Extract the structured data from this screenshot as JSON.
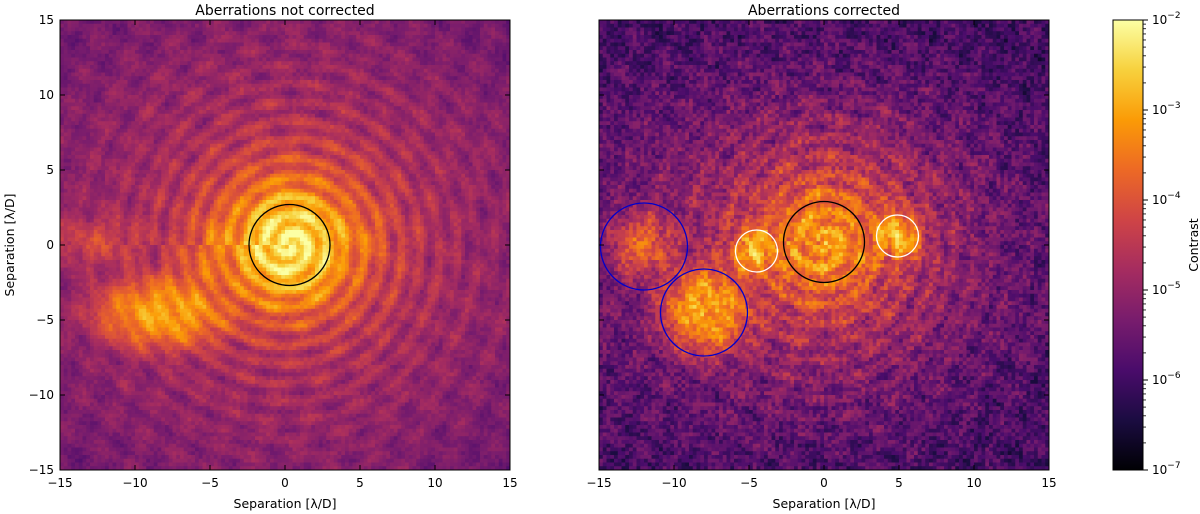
{
  "figure": {
    "colorbar": {
      "label": "Contrast",
      "tick_labels": [
        "10^-2",
        "10^-3",
        "10^-4",
        "10^-5",
        "10^-6",
        "10^-7"
      ],
      "tick_values": [
        -2,
        -3,
        -4,
        -5,
        -6,
        -7
      ],
      "range": [
        -7,
        -2
      ],
      "scale": "log",
      "colormap": "inferno",
      "colors": [
        "#000004",
        "#1b0c41",
        "#4a0c6b",
        "#781c6d",
        "#a52c60",
        "#cf4446",
        "#ed6925",
        "#fb9b06",
        "#f7d13d",
        "#fcffa4"
      ]
    }
  },
  "chart_data": [
    {
      "type": "heatmap",
      "title": "Aberrations not corrected",
      "xlabel": "Separation [λ/D]",
      "ylabel": "Separation [λ/D]",
      "xlim": [
        -15,
        15
      ],
      "ylim": [
        -15,
        15
      ],
      "x_ticks": [
        -15,
        -10,
        -5,
        0,
        5,
        10,
        15
      ],
      "y_ticks": [
        -15,
        -10,
        -5,
        0,
        5,
        10,
        15
      ],
      "x_tick_labels": [
        "−15",
        "−10",
        "−5",
        "0",
        "5",
        "10",
        "15"
      ],
      "y_tick_labels": [
        "−15",
        "−10",
        "−5",
        "0",
        "5",
        "10",
        "15"
      ],
      "background_log_contrast": -5.6,
      "ring_pattern": {
        "center": [
          0.3,
          0
        ],
        "amplitude": 0.9,
        "period": 1.25
      },
      "blobs": [
        {
          "x": 0.3,
          "y": 0.0,
          "sx": 1.6,
          "sy": 1.6,
          "level": -2.3
        },
        {
          "x": 0.5,
          "y": 0.2,
          "sx": 3.3,
          "sy": 3.0,
          "level": -3.6
        },
        {
          "x": -8.0,
          "y": -4.5,
          "sx": 1.9,
          "sy": 1.0,
          "level": -3.0
        },
        {
          "x": -5.5,
          "y": -2.0,
          "sx": 1.2,
          "sy": 1.1,
          "level": -4.0
        },
        {
          "x": -12.5,
          "y": 0.2,
          "sx": 1.8,
          "sy": 0.9,
          "level": -4.3
        },
        {
          "x": -4.5,
          "y": 0.3,
          "sx": 0.8,
          "sy": 0.9,
          "level": -3.7
        },
        {
          "x": 5.0,
          "y": 0.5,
          "sx": 0.9,
          "sy": 0.8,
          "level": -3.9
        },
        {
          "x": 0.0,
          "y": 0.0,
          "sx": 9.0,
          "sy": 8.0,
          "level": -4.6
        }
      ],
      "circles": [
        {
          "x": 0.3,
          "y": 0.0,
          "r": 2.7,
          "color": "#000000"
        }
      ]
    },
    {
      "type": "heatmap",
      "title": "Aberrations corrected",
      "xlabel": "Separation [λ/D]",
      "ylabel": "",
      "xlim": [
        -15,
        15
      ],
      "ylim": [
        -15,
        15
      ],
      "x_ticks": [
        -15,
        -10,
        -5,
        0,
        5,
        10,
        15
      ],
      "y_ticks": [
        -15,
        -10,
        -5,
        0,
        5,
        10,
        15
      ],
      "x_tick_labels": [
        "−15",
        "−10",
        "−5",
        "0",
        "5",
        "10",
        "15"
      ],
      "y_tick_labels": [],
      "background_log_contrast": -6.0,
      "ring_pattern": {
        "center": [
          0,
          0.2
        ],
        "amplitude": 0.7,
        "period": 1.25
      },
      "blobs": [
        {
          "x": 0.0,
          "y": 0.2,
          "sx": 1.8,
          "sy": 1.8,
          "level": -3.2
        },
        {
          "x": 0.0,
          "y": 0.2,
          "sx": 4.0,
          "sy": 3.6,
          "level": -4.3
        },
        {
          "x": -4.5,
          "y": -0.4,
          "sx": 0.7,
          "sy": 0.7,
          "level": -2.8
        },
        {
          "x": 4.8,
          "y": 0.6,
          "sx": 0.7,
          "sy": 0.7,
          "level": -2.8
        },
        {
          "x": -12.0,
          "y": 0.0,
          "sx": 1.0,
          "sy": 1.0,
          "level": -3.8
        },
        {
          "x": -7.8,
          "y": -4.2,
          "sx": 1.2,
          "sy": 1.2,
          "level": -3.0
        },
        {
          "x": -2.0,
          "y": -0.5,
          "sx": 8.0,
          "sy": 6.0,
          "level": -5.0
        }
      ],
      "circles": [
        {
          "x": 0.0,
          "y": 0.2,
          "r": 2.7,
          "color": "#000000"
        },
        {
          "x": -4.5,
          "y": -0.4,
          "r": 1.4,
          "color": "#ffffff"
        },
        {
          "x": 4.9,
          "y": 0.6,
          "r": 1.4,
          "color": "#ffffff"
        },
        {
          "x": -12.0,
          "y": -0.1,
          "r": 2.9,
          "color": "#0000cc"
        },
        {
          "x": -8.0,
          "y": -4.5,
          "r": 2.9,
          "color": "#0000cc"
        }
      ]
    }
  ]
}
